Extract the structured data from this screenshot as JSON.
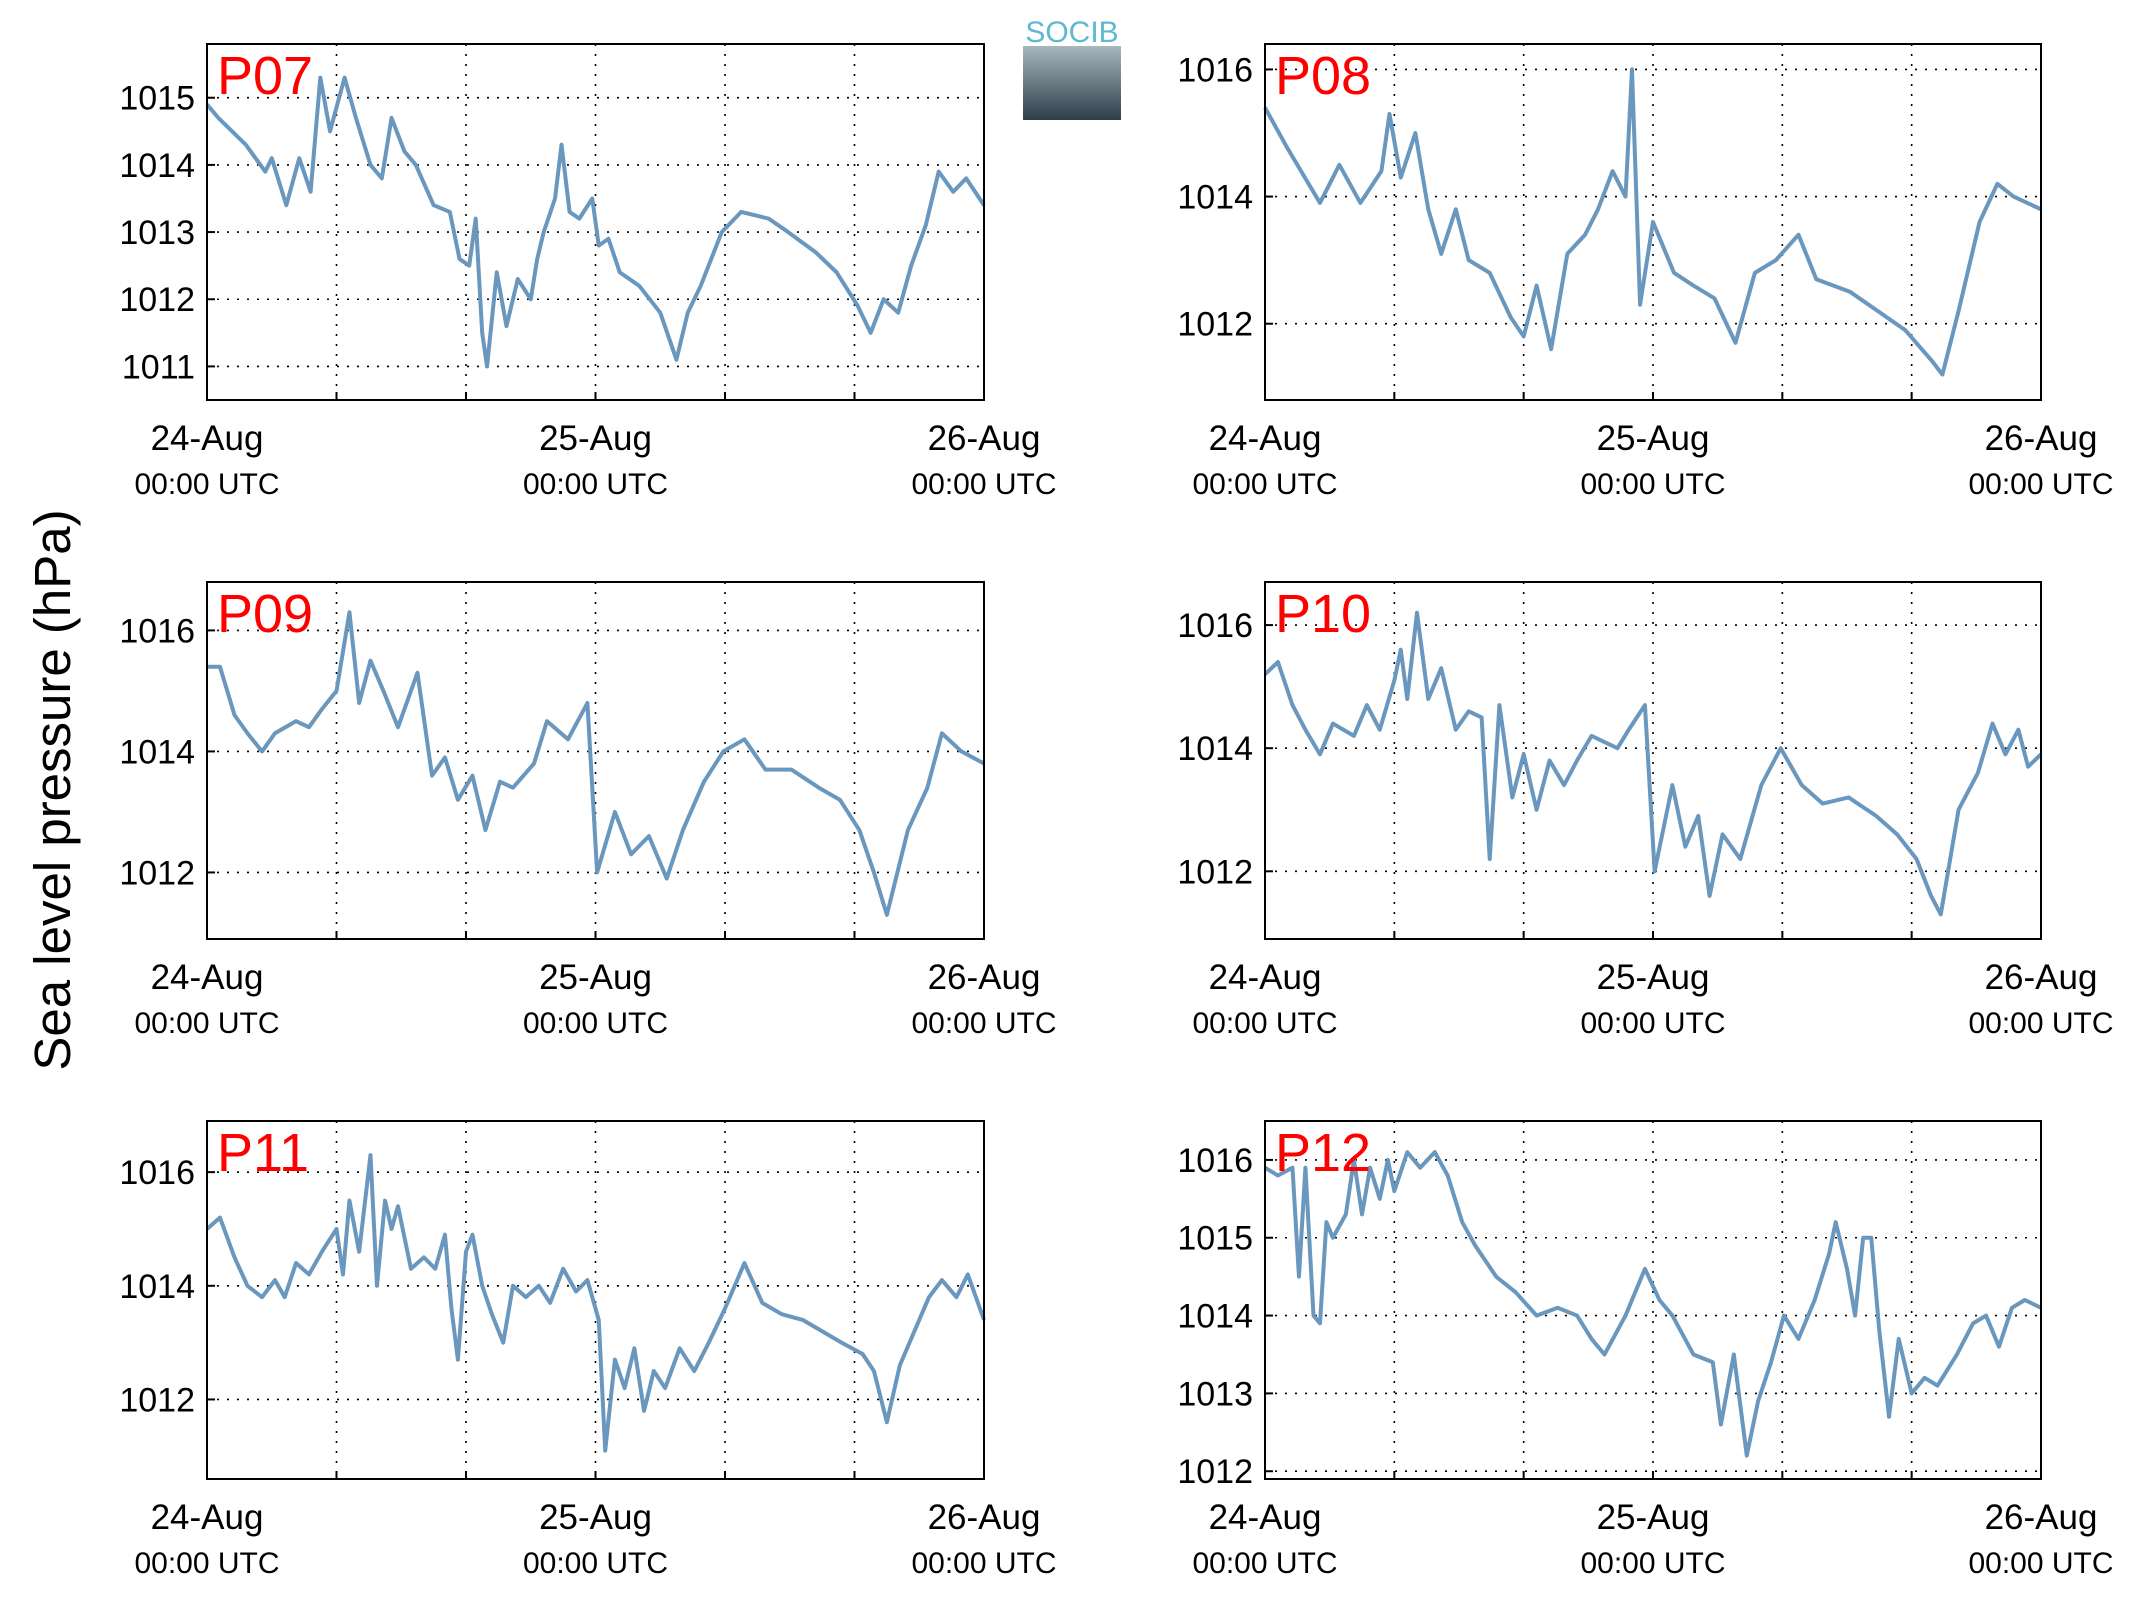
{
  "ylabel": "Sea level pressure (hPa)",
  "logo": "SOCIB",
  "chart_data": [
    {
      "type": "line",
      "title": "P07",
      "title_color": "#ff0000",
      "grid": true,
      "x": [
        0,
        0.7,
        2.4,
        3.6,
        4.0,
        4.9,
        5.7,
        6.4,
        7.0,
        7.6,
        8.5,
        9.2,
        10.1,
        10.8,
        11.4,
        12.2,
        12.9,
        14.0,
        15.0,
        15.6,
        16.2,
        16.6,
        17.0,
        17.3,
        17.9,
        18.5,
        19.2,
        20.0,
        20.4,
        20.8,
        21.5,
        21.9,
        22.4,
        23.0,
        23.8,
        24.2,
        24.8,
        25.5,
        26.7,
        28.0,
        29.0,
        29.7,
        30.5,
        31.8,
        33.0,
        34.7,
        35.9,
        37.6,
        38.9,
        40.2,
        41.0,
        41.8,
        42.7,
        43.5,
        44.4,
        45.2,
        46.1,
        46.9,
        48
      ],
      "series": [
        {
          "color": "#6a97bd",
          "values": [
            1014.9,
            1014.7,
            1014.3,
            1013.9,
            1014.1,
            1013.4,
            1014.1,
            1013.6,
            1015.3,
            1014.5,
            1015.3,
            1014.7,
            1014.0,
            1013.8,
            1014.7,
            1014.2,
            1014.0,
            1013.4,
            1013.3,
            1012.6,
            1012.5,
            1013.2,
            1011.5,
            1011.0,
            1012.4,
            1011.6,
            1012.3,
            1012.0,
            1012.6,
            1013.0,
            1013.5,
            1014.3,
            1013.3,
            1013.2,
            1013.5,
            1012.8,
            1012.9,
            1012.4,
            1012.2,
            1011.8,
            1011.1,
            1011.8,
            1012.2,
            1013.0,
            1013.3,
            1013.2,
            1013.0,
            1012.7,
            1012.4,
            1011.9,
            1011.5,
            1012.0,
            1011.8,
            1012.5,
            1013.1,
            1013.9,
            1013.6,
            1013.8,
            1013.4
          ]
        }
      ],
      "xlim": [
        0,
        48
      ],
      "ylim": [
        1010.5,
        1015.8
      ],
      "yticks": [
        1011,
        1012,
        1013,
        1014,
        1015
      ],
      "xticks": [
        {
          "value": 0,
          "label": "24-Aug",
          "sublabel": "00:00 UTC"
        },
        {
          "value": 8,
          "label": null
        },
        {
          "value": 16,
          "label": null
        },
        {
          "value": 24,
          "label": "25-Aug",
          "sublabel": "00:00 UTC"
        },
        {
          "value": 32,
          "label": null
        },
        {
          "value": 40,
          "label": null
        },
        {
          "value": 48,
          "label": "26-Aug",
          "sublabel": "00:00 UTC"
        }
      ]
    },
    {
      "type": "line",
      "title": "P08",
      "title_color": "#ff0000",
      "grid": true,
      "x": [
        0,
        1.3,
        3.4,
        4.6,
        5.9,
        7.2,
        7.7,
        8.4,
        9.3,
        10.1,
        10.9,
        11.8,
        12.6,
        13.9,
        15.2,
        16.0,
        16.8,
        17.7,
        18.7,
        19.8,
        20.6,
        21.5,
        22.3,
        22.7,
        23.2,
        24.0,
        25.3,
        26.5,
        27.8,
        29.1,
        30.3,
        31.6,
        33.0,
        34.1,
        36.2,
        37.9,
        39.6,
        41.3,
        41.9,
        42.9,
        44.2,
        45.3,
        46.3,
        48
      ],
      "series": [
        {
          "color": "#6a97bd",
          "values": [
            1015.4,
            1014.8,
            1013.9,
            1014.5,
            1013.9,
            1014.4,
            1015.3,
            1014.3,
            1015.0,
            1013.8,
            1013.1,
            1013.8,
            1013.0,
            1012.8,
            1012.1,
            1011.8,
            1012.6,
            1011.6,
            1013.1,
            1013.4,
            1013.8,
            1014.4,
            1014.0,
            1016.0,
            1012.3,
            1013.6,
            1012.8,
            1012.6,
            1012.4,
            1011.7,
            1012.8,
            1013.0,
            1013.4,
            1012.7,
            1012.5,
            1012.2,
            1011.9,
            1011.4,
            1011.2,
            1012.2,
            1013.6,
            1014.2,
            1014.0,
            1013.8
          ]
        }
      ],
      "xlim": [
        0,
        48
      ],
      "ylim": [
        1010.8,
        1016.4
      ],
      "yticks": [
        1012,
        1014,
        1016
      ],
      "xticks": [
        {
          "value": 0,
          "label": "24-Aug",
          "sublabel": "00:00 UTC"
        },
        {
          "value": 8,
          "label": null
        },
        {
          "value": 16,
          "label": null
        },
        {
          "value": 24,
          "label": "25-Aug",
          "sublabel": "00:00 UTC"
        },
        {
          "value": 32,
          "label": null
        },
        {
          "value": 40,
          "label": null
        },
        {
          "value": 48,
          "label": "26-Aug",
          "sublabel": "00:00 UTC"
        }
      ]
    },
    {
      "type": "line",
      "title": "P09",
      "title_color": "#ff0000",
      "grid": true,
      "x": [
        0,
        0.8,
        1.7,
        2.5,
        3.4,
        4.2,
        5.5,
        6.3,
        7.1,
        8.0,
        8.8,
        9.4,
        10.1,
        10.9,
        11.8,
        13.0,
        13.9,
        14.7,
        15.5,
        16.4,
        17.2,
        18.1,
        18.9,
        20.2,
        21.0,
        22.3,
        23.5,
        24.1,
        25.2,
        26.2,
        27.3,
        28.4,
        29.4,
        30.7,
        31.9,
        33.2,
        34.5,
        36.1,
        37.8,
        39.1,
        40.3,
        41.2,
        42.0,
        43.3,
        44.5,
        45.4,
        46.6,
        48
      ],
      "series": [
        {
          "color": "#6a97bd",
          "values": [
            1015.4,
            1015.4,
            1014.6,
            1014.3,
            1014.0,
            1014.3,
            1014.5,
            1014.4,
            1014.7,
            1015.0,
            1016.3,
            1014.8,
            1015.5,
            1015.0,
            1014.4,
            1015.3,
            1013.6,
            1013.9,
            1013.2,
            1013.6,
            1012.7,
            1013.5,
            1013.4,
            1013.8,
            1014.5,
            1014.2,
            1014.8,
            1012.0,
            1013.0,
            1012.3,
            1012.6,
            1011.9,
            1012.7,
            1013.5,
            1014.0,
            1014.2,
            1013.7,
            1013.7,
            1013.4,
            1013.2,
            1012.7,
            1012.0,
            1011.3,
            1012.7,
            1013.4,
            1014.3,
            1014.0,
            1013.8
          ]
        }
      ],
      "xlim": [
        0,
        48
      ],
      "ylim": [
        1010.9,
        1016.8
      ],
      "yticks": [
        1012,
        1014,
        1016
      ],
      "xticks": [
        {
          "value": 0,
          "label": "24-Aug",
          "sublabel": "00:00 UTC"
        },
        {
          "value": 8,
          "label": null
        },
        {
          "value": 16,
          "label": null
        },
        {
          "value": 24,
          "label": "25-Aug",
          "sublabel": "00:00 UTC"
        },
        {
          "value": 32,
          "label": null
        },
        {
          "value": 40,
          "label": null
        },
        {
          "value": 48,
          "label": "26-Aug",
          "sublabel": "00:00 UTC"
        }
      ]
    },
    {
      "type": "line",
      "title": "P10",
      "title_color": "#ff0000",
      "grid": true,
      "x": [
        0,
        0.8,
        1.7,
        2.5,
        3.4,
        4.2,
        5.5,
        6.3,
        7.1,
        8.0,
        8.4,
        8.8,
        9.4,
        10.1,
        10.9,
        11.8,
        12.6,
        13.4,
        13.9,
        14.5,
        15.3,
        16.0,
        16.8,
        17.6,
        18.5,
        19.3,
        20.2,
        21.0,
        21.8,
        22.5,
        23.5,
        24.1,
        25.2,
        26.0,
        26.8,
        27.5,
        28.3,
        29.4,
        30.7,
        31.9,
        33.2,
        34.5,
        36.1,
        37.8,
        39.1,
        40.3,
        41.2,
        41.8,
        42.9,
        44.1,
        45.0,
        45.8,
        46.6,
        47.2,
        48
      ],
      "series": [
        {
          "color": "#6a97bd",
          "values": [
            1015.2,
            1015.4,
            1014.7,
            1014.3,
            1013.9,
            1014.4,
            1014.2,
            1014.7,
            1014.3,
            1015.1,
            1015.6,
            1014.8,
            1016.2,
            1014.8,
            1015.3,
            1014.3,
            1014.6,
            1014.5,
            1012.2,
            1014.7,
            1013.2,
            1013.9,
            1013.0,
            1013.8,
            1013.4,
            1013.8,
            1014.2,
            1014.1,
            1014.0,
            1014.3,
            1014.7,
            1012.0,
            1013.4,
            1012.4,
            1012.9,
            1011.6,
            1012.6,
            1012.2,
            1013.4,
            1014.0,
            1013.4,
            1013.1,
            1013.2,
            1012.9,
            1012.6,
            1012.2,
            1011.6,
            1011.3,
            1013.0,
            1013.6,
            1014.4,
            1013.9,
            1014.3,
            1013.7,
            1013.9
          ]
        }
      ],
      "xlim": [
        0,
        48
      ],
      "ylim": [
        1010.9,
        1016.7
      ],
      "yticks": [
        1012,
        1014,
        1016
      ],
      "xticks": [
        {
          "value": 0,
          "label": "24-Aug",
          "sublabel": "00:00 UTC"
        },
        {
          "value": 8,
          "label": null
        },
        {
          "value": 16,
          "label": null
        },
        {
          "value": 24,
          "label": "25-Aug",
          "sublabel": "00:00 UTC"
        },
        {
          "value": 32,
          "label": null
        },
        {
          "value": 40,
          "label": null
        },
        {
          "value": 48,
          "label": "26-Aug",
          "sublabel": "00:00 UTC"
        }
      ]
    },
    {
      "type": "line",
      "title": "P11",
      "title_color": "#ff0000",
      "grid": true,
      "x": [
        0,
        0.8,
        1.7,
        2.5,
        3.4,
        4.2,
        4.8,
        5.5,
        6.3,
        7.1,
        8.0,
        8.4,
        8.8,
        9.4,
        10.1,
        10.5,
        11.0,
        11.4,
        11.8,
        12.6,
        13.4,
        14.1,
        14.7,
        15.1,
        15.5,
        16.0,
        16.4,
        17.0,
        17.6,
        18.3,
        18.9,
        19.7,
        20.5,
        21.2,
        22.0,
        22.8,
        23.5,
        24.2,
        24.6,
        25.2,
        25.8,
        26.4,
        27.0,
        27.6,
        28.3,
        29.2,
        30.1,
        31.0,
        32.0,
        33.2,
        34.3,
        35.5,
        36.8,
        38.0,
        39.2,
        40.5,
        41.2,
        42.0,
        42.8,
        43.7,
        44.6,
        45.4,
        46.3,
        47.0,
        48
      ],
      "series": [
        {
          "color": "#6a97bd",
          "values": [
            1015.0,
            1015.2,
            1014.5,
            1014.0,
            1013.8,
            1014.1,
            1013.8,
            1014.4,
            1014.2,
            1014.6,
            1015.0,
            1014.2,
            1015.5,
            1014.6,
            1016.3,
            1014.0,
            1015.5,
            1015.0,
            1015.4,
            1014.3,
            1014.5,
            1014.3,
            1014.9,
            1013.6,
            1012.7,
            1014.6,
            1014.9,
            1014.0,
            1013.5,
            1013.0,
            1014.0,
            1013.8,
            1014.0,
            1013.7,
            1014.3,
            1013.9,
            1014.1,
            1013.4,
            1011.1,
            1012.7,
            1012.2,
            1012.9,
            1011.8,
            1012.5,
            1012.2,
            1012.9,
            1012.5,
            1013.0,
            1013.6,
            1014.4,
            1013.7,
            1013.5,
            1013.4,
            1013.2,
            1013.0,
            1012.8,
            1012.5,
            1011.6,
            1012.6,
            1013.2,
            1013.8,
            1014.1,
            1013.8,
            1014.2,
            1013.4
          ]
        }
      ],
      "xlim": [
        0,
        48
      ],
      "ylim": [
        1010.6,
        1016.9
      ],
      "yticks": [
        1012,
        1014,
        1016
      ],
      "xticks": [
        {
          "value": 0,
          "label": "24-Aug",
          "sublabel": "00:00 UTC"
        },
        {
          "value": 8,
          "label": null
        },
        {
          "value": 16,
          "label": null
        },
        {
          "value": 24,
          "label": "25-Aug",
          "sublabel": "00:00 UTC"
        },
        {
          "value": 32,
          "label": null
        },
        {
          "value": 40,
          "label": null
        },
        {
          "value": 48,
          "label": "26-Aug",
          "sublabel": "00:00 UTC"
        }
      ]
    },
    {
      "type": "line",
      "title": "P12",
      "title_color": "#ff0000",
      "grid": true,
      "x": [
        0,
        0.8,
        1.7,
        2.1,
        2.5,
        3.0,
        3.4,
        3.8,
        4.2,
        5.0,
        5.5,
        6.0,
        6.5,
        7.1,
        7.6,
        8.0,
        8.8,
        9.6,
        10.5,
        11.3,
        12.2,
        13.0,
        14.3,
        15.5,
        16.8,
        18.1,
        19.3,
        20.2,
        21.0,
        22.3,
        23.5,
        24.4,
        25.2,
        26.5,
        27.7,
        28.2,
        29.0,
        29.8,
        30.5,
        31.3,
        32.1,
        33.0,
        34.0,
        34.9,
        35.3,
        36.0,
        36.5,
        37.0,
        37.5,
        38.0,
        38.6,
        39.2,
        40.0,
        40.8,
        41.6,
        42.8,
        43.8,
        44.6,
        45.4,
        46.2,
        47.0,
        48
      ],
      "series": [
        {
          "color": "#6a97bd",
          "values": [
            1015.9,
            1015.8,
            1015.9,
            1014.5,
            1015.9,
            1014.0,
            1013.9,
            1015.2,
            1015.0,
            1015.3,
            1016.0,
            1015.3,
            1015.9,
            1015.5,
            1016.0,
            1015.6,
            1016.1,
            1015.9,
            1016.1,
            1015.8,
            1015.2,
            1014.9,
            1014.5,
            1014.3,
            1014.0,
            1014.1,
            1014.0,
            1013.7,
            1013.5,
            1014.0,
            1014.6,
            1014.2,
            1014.0,
            1013.5,
            1013.4,
            1012.6,
            1013.5,
            1012.2,
            1012.9,
            1013.4,
            1014.0,
            1013.7,
            1014.2,
            1014.8,
            1015.2,
            1014.6,
            1014.0,
            1015.0,
            1015.0,
            1013.8,
            1012.7,
            1013.7,
            1013.0,
            1013.2,
            1013.1,
            1013.5,
            1013.9,
            1014.0,
            1013.6,
            1014.1,
            1014.2,
            1014.1
          ]
        }
      ],
      "xlim": [
        0,
        48
      ],
      "ylim": [
        1011.9,
        1016.5
      ],
      "yticks": [
        1012,
        1013,
        1014,
        1015,
        1016
      ],
      "xticks": [
        {
          "value": 0,
          "label": "24-Aug",
          "sublabel": "00:00 UTC"
        },
        {
          "value": 8,
          "label": null
        },
        {
          "value": 16,
          "label": null
        },
        {
          "value": 24,
          "label": "25-Aug",
          "sublabel": "00:00 UTC"
        },
        {
          "value": 32,
          "label": null
        },
        {
          "value": 40,
          "label": null
        },
        {
          "value": 48,
          "label": "26-Aug",
          "sublabel": "00:00 UTC"
        }
      ]
    }
  ]
}
